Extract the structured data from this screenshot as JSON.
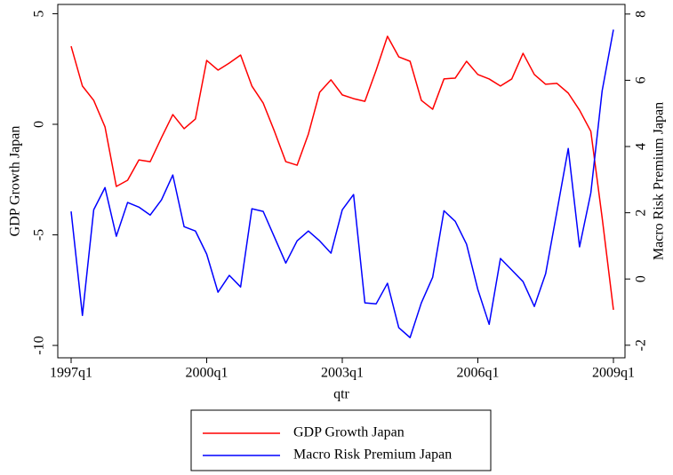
{
  "chart_data": {
    "type": "line",
    "xlabel": "qtr",
    "ylabel": "GDP Growth Japan",
    "y2label": "Macro Risk Premium Japan",
    "categories": [
      "1997q1",
      null,
      null,
      null,
      null,
      null,
      null,
      null,
      null,
      null,
      null,
      null,
      "2000q1",
      null,
      null,
      null,
      null,
      null,
      null,
      null,
      null,
      null,
      null,
      null,
      "2003q1",
      null,
      null,
      null,
      null,
      null,
      null,
      null,
      null,
      null,
      null,
      null,
      "2006q1",
      null,
      null,
      null,
      null,
      null,
      null,
      null,
      null,
      null,
      null,
      null,
      "2009q1"
    ],
    "series": [
      {
        "name": "GDP Growth Japan",
        "color": "#ff0000",
        "axis": "y",
        "values": [
          3.53,
          1.73,
          1.08,
          -0.12,
          -2.81,
          -2.53,
          -1.61,
          -1.69,
          -0.6,
          0.44,
          -0.2,
          0.24,
          2.89,
          2.45,
          2.77,
          3.13,
          1.73,
          0.96,
          -0.32,
          -1.69,
          -1.85,
          -0.44,
          1.45,
          2.01,
          1.33,
          1.16,
          1.04,
          2.45,
          3.98,
          3.05,
          2.85,
          1.08,
          0.68,
          2.05,
          2.09,
          2.85,
          2.25,
          2.05,
          1.73,
          2.05,
          3.21,
          2.25,
          1.81,
          1.85,
          1.41,
          0.64,
          -0.32,
          -4.22,
          -8.39
        ]
      },
      {
        "name": "Macro Risk Premium Japan",
        "color": "#0000ff",
        "axis": "y2",
        "values": [
          2.04,
          -1.1,
          2.09,
          2.76,
          1.29,
          2.31,
          2.17,
          1.93,
          2.39,
          3.14,
          1.58,
          1.45,
          0.75,
          -0.4,
          0.11,
          -0.24,
          2.12,
          2.04,
          1.26,
          0.48,
          1.15,
          1.45,
          1.15,
          0.78,
          2.09,
          2.55,
          -0.72,
          -0.75,
          -0.13,
          -1.47,
          -1.77,
          -0.72,
          0.05,
          2.06,
          1.74,
          1.05,
          -0.32,
          -1.37,
          0.62,
          0.27,
          -0.08,
          -0.83,
          0.16,
          2.04,
          3.94,
          0.97,
          2.6,
          5.68,
          7.53
        ]
      }
    ],
    "ylim": [
      -10.56,
      5.42
    ],
    "yticks": [
      5,
      0,
      -5,
      -10
    ],
    "y2lim": [
      -2.38,
      8.29
    ],
    "y2ticks": [
      8,
      6,
      4,
      2,
      0,
      -2
    ],
    "grid": false,
    "legend": "bottom"
  }
}
